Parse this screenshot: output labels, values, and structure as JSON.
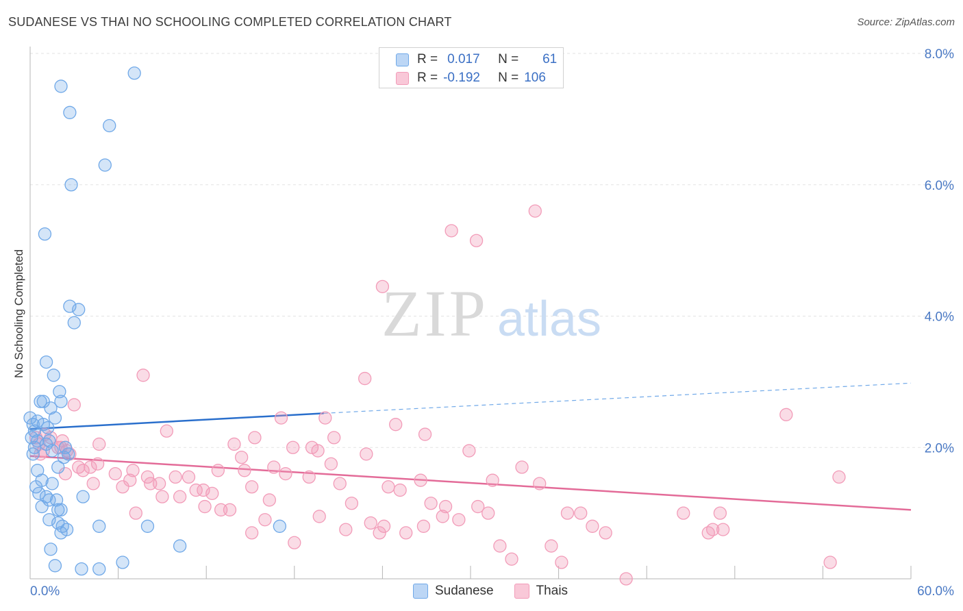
{
  "title": "SUDANESE VS THAI NO SCHOOLING COMPLETED CORRELATION CHART",
  "source": "Source: ZipAtlas.com",
  "watermark": {
    "zip": "ZIP",
    "atlas": "atlas"
  },
  "legend": {
    "rows": [
      {
        "r_label": "R =",
        "r_value": "0.017",
        "n_label": "N =",
        "n_value": "61"
      },
      {
        "r_label": "R =",
        "r_value": "-0.192",
        "n_label": "N =",
        "n_value": "106"
      }
    ]
  },
  "chart_data": {
    "type": "scatter",
    "title": "SUDANESE VS THAI NO SCHOOLING COMPLETED CORRELATION CHART",
    "ylabel": "No Schooling Completed",
    "xlabel": "",
    "xlim": [
      0,
      60
    ],
    "ylim": [
      0,
      8.0
    ],
    "x_tick_labels": [
      "0.0%",
      "60.0%"
    ],
    "y_ticks": [
      2.0,
      4.0,
      6.0,
      8.0
    ],
    "y_tick_labels": [
      "2.0%",
      "4.0%",
      "6.0%",
      "8.0%"
    ],
    "grid": true,
    "legend_position": "bottom-center",
    "colors": {
      "sudanese": "#6fa8e8",
      "thais": "#f29bb8",
      "sudanese_line": "#2a6fcc",
      "thais_line": "#e36b98"
    },
    "series": [
      {
        "name": "Sudanese",
        "r": 0.017,
        "n": 61,
        "trend": {
          "x": [
            0,
            20
          ],
          "y": [
            2.28,
            2.52
          ],
          "dashed_extension": {
            "x": [
              20,
              60
            ],
            "y": [
              2.52,
              2.98
            ]
          }
        },
        "points": [
          [
            2.1,
            7.5
          ],
          [
            7.1,
            7.7
          ],
          [
            2.7,
            7.1
          ],
          [
            5.4,
            6.9
          ],
          [
            5.1,
            6.3
          ],
          [
            2.8,
            6.0
          ],
          [
            1.0,
            5.25
          ],
          [
            2.7,
            4.15
          ],
          [
            3.3,
            4.1
          ],
          [
            3.0,
            3.9
          ],
          [
            1.1,
            3.3
          ],
          [
            1.6,
            3.1
          ],
          [
            2.0,
            2.85
          ],
          [
            0.7,
            2.7
          ],
          [
            0.9,
            2.7
          ],
          [
            2.1,
            2.7
          ],
          [
            1.4,
            2.6
          ],
          [
            0.0,
            2.45
          ],
          [
            0.5,
            2.4
          ],
          [
            0.9,
            2.35
          ],
          [
            1.2,
            2.3
          ],
          [
            0.3,
            2.25
          ],
          [
            0.1,
            2.15
          ],
          [
            0.5,
            2.1
          ],
          [
            1.3,
            2.1
          ],
          [
            2.4,
            2.0
          ],
          [
            0.2,
            1.9
          ],
          [
            1.5,
            1.95
          ],
          [
            2.3,
            1.85
          ],
          [
            0.5,
            1.65
          ],
          [
            1.9,
            1.7
          ],
          [
            0.8,
            1.5
          ],
          [
            1.5,
            1.45
          ],
          [
            0.4,
            1.4
          ],
          [
            1.1,
            1.25
          ],
          [
            1.3,
            1.2
          ],
          [
            1.8,
            1.2
          ],
          [
            3.6,
            1.25
          ],
          [
            0.8,
            1.1
          ],
          [
            1.9,
            1.05
          ],
          [
            2.1,
            1.05
          ],
          [
            1.3,
            0.9
          ],
          [
            1.9,
            0.85
          ],
          [
            2.2,
            0.8
          ],
          [
            2.5,
            0.75
          ],
          [
            2.1,
            0.7
          ],
          [
            4.7,
            0.8
          ],
          [
            8.0,
            0.8
          ],
          [
            17.0,
            0.8
          ],
          [
            1.4,
            0.45
          ],
          [
            10.2,
            0.5
          ],
          [
            1.7,
            0.2
          ],
          [
            3.5,
            0.15
          ],
          [
            4.7,
            0.15
          ],
          [
            6.3,
            0.25
          ],
          [
            0.6,
            1.3
          ],
          [
            2.6,
            1.9
          ],
          [
            0.3,
            2.0
          ],
          [
            1.1,
            2.05
          ],
          [
            0.2,
            2.35
          ],
          [
            1.7,
            2.45
          ]
        ]
      },
      {
        "name": "Thais",
        "r": -0.192,
        "n": 106,
        "trend": {
          "x": [
            0,
            60
          ],
          "y": [
            1.87,
            1.05
          ]
        },
        "points": [
          [
            34.4,
            5.6
          ],
          [
            28.7,
            5.3
          ],
          [
            30.4,
            5.15
          ],
          [
            24.0,
            4.45
          ],
          [
            7.7,
            3.1
          ],
          [
            22.8,
            3.05
          ],
          [
            3.0,
            2.65
          ],
          [
            51.5,
            2.5
          ],
          [
            17.1,
            2.45
          ],
          [
            20.1,
            2.45
          ],
          [
            24.9,
            2.35
          ],
          [
            9.3,
            2.25
          ],
          [
            26.9,
            2.2
          ],
          [
            15.3,
            2.15
          ],
          [
            20.7,
            2.15
          ],
          [
            0.4,
            2.15
          ],
          [
            1.4,
            2.15
          ],
          [
            0.6,
            2.05
          ],
          [
            4.7,
            2.05
          ],
          [
            13.9,
            2.05
          ],
          [
            17.9,
            2.0
          ],
          [
            19.2,
            2.0
          ],
          [
            19.6,
            1.95
          ],
          [
            29.9,
            1.95
          ],
          [
            2.1,
            2.0
          ],
          [
            2.7,
            1.9
          ],
          [
            22.9,
            1.9
          ],
          [
            0.9,
            1.95
          ],
          [
            2.5,
            1.95
          ],
          [
            14.4,
            1.85
          ],
          [
            4.6,
            1.75
          ],
          [
            20.5,
            1.75
          ],
          [
            3.3,
            1.7
          ],
          [
            3.6,
            1.65
          ],
          [
            4.1,
            1.7
          ],
          [
            7.0,
            1.65
          ],
          [
            12.8,
            1.65
          ],
          [
            14.6,
            1.65
          ],
          [
            16.6,
            1.7
          ],
          [
            33.5,
            1.7
          ],
          [
            2.4,
            1.6
          ],
          [
            5.8,
            1.6
          ],
          [
            8.0,
            1.55
          ],
          [
            9.9,
            1.55
          ],
          [
            10.8,
            1.55
          ],
          [
            17.4,
            1.6
          ],
          [
            19.0,
            1.55
          ],
          [
            55.1,
            1.55
          ],
          [
            6.8,
            1.5
          ],
          [
            8.2,
            1.45
          ],
          [
            8.8,
            1.45
          ],
          [
            26.6,
            1.5
          ],
          [
            31.5,
            1.5
          ],
          [
            21.1,
            1.45
          ],
          [
            4.3,
            1.45
          ],
          [
            6.3,
            1.4
          ],
          [
            15.1,
            1.4
          ],
          [
            24.4,
            1.4
          ],
          [
            25.2,
            1.35
          ],
          [
            11.3,
            1.35
          ],
          [
            11.8,
            1.35
          ],
          [
            12.4,
            1.3
          ],
          [
            9.0,
            1.25
          ],
          [
            10.2,
            1.25
          ],
          [
            16.3,
            1.2
          ],
          [
            21.9,
            1.15
          ],
          [
            27.3,
            1.15
          ],
          [
            28.3,
            1.1
          ],
          [
            30.5,
            1.1
          ],
          [
            34.7,
            1.45
          ],
          [
            11.9,
            1.1
          ],
          [
            13.0,
            1.05
          ],
          [
            13.6,
            1.05
          ],
          [
            7.2,
            1.0
          ],
          [
            31.2,
            1.0
          ],
          [
            36.6,
            1.0
          ],
          [
            37.5,
            1.0
          ],
          [
            44.5,
            1.0
          ],
          [
            47.0,
            1.0
          ],
          [
            19.7,
            0.95
          ],
          [
            16.0,
            0.9
          ],
          [
            28.1,
            0.95
          ],
          [
            29.2,
            0.9
          ],
          [
            23.2,
            0.85
          ],
          [
            38.3,
            0.8
          ],
          [
            21.5,
            0.75
          ],
          [
            24.1,
            0.8
          ],
          [
            26.8,
            0.8
          ],
          [
            46.2,
            0.7
          ],
          [
            46.5,
            0.75
          ],
          [
            47.2,
            0.75
          ],
          [
            15.1,
            0.7
          ],
          [
            23.8,
            0.7
          ],
          [
            25.6,
            0.7
          ],
          [
            39.2,
            0.7
          ],
          [
            18.0,
            0.55
          ],
          [
            32.0,
            0.5
          ],
          [
            35.5,
            0.5
          ],
          [
            32.8,
            0.3
          ],
          [
            36.2,
            0.25
          ],
          [
            54.5,
            0.25
          ],
          [
            40.6,
            0.0
          ],
          [
            1.0,
            2.2
          ],
          [
            1.9,
            2.0
          ],
          [
            2.2,
            2.1
          ],
          [
            0.7,
            1.9
          ]
        ]
      }
    ]
  }
}
